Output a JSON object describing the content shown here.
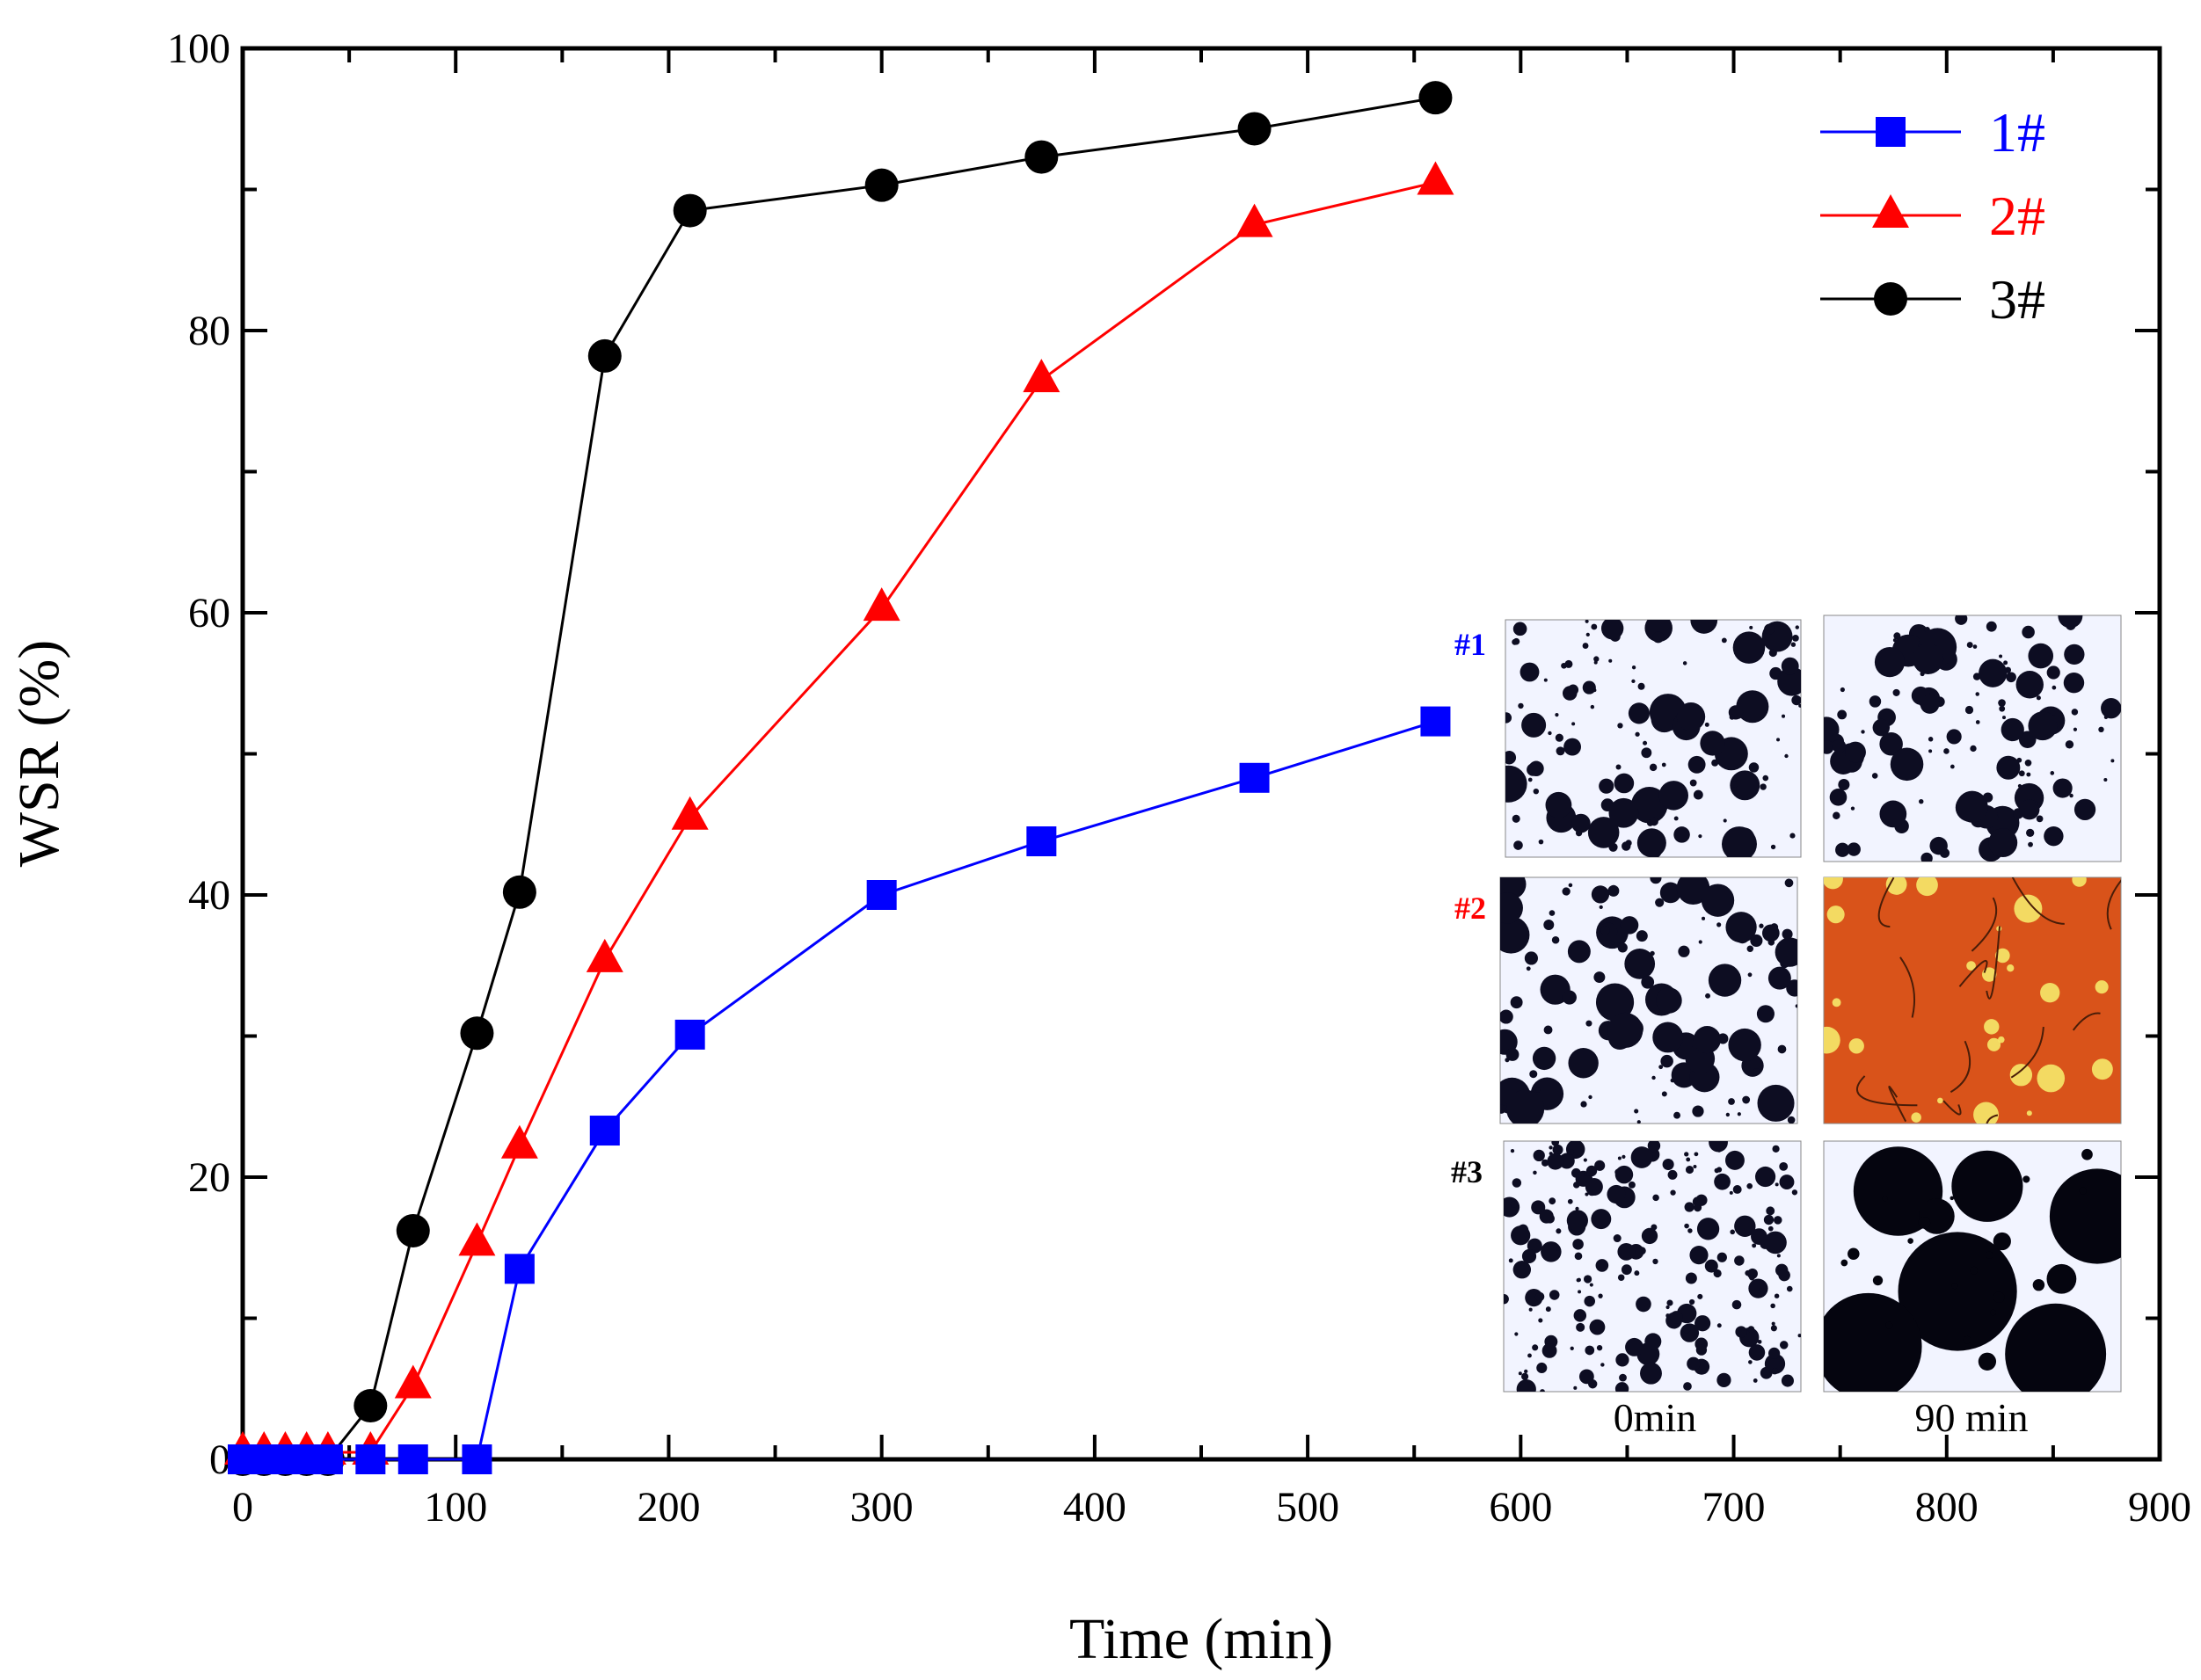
{
  "chart_data": {
    "type": "line",
    "xlabel": "Time (min)",
    "ylabel": "WSR (%)",
    "xlim": [
      0,
      900
    ],
    "ylim": [
      0,
      100
    ],
    "xticks": [
      "0",
      "100",
      "200",
      "300",
      "400",
      "500",
      "600",
      "700",
      "800",
      "900"
    ],
    "yticks": [
      "0",
      "20",
      "40",
      "60",
      "80",
      "100"
    ],
    "legend_position": "top-right",
    "series": [
      {
        "name": "1#",
        "color": "#0000ff",
        "marker": "square",
        "x": [
          0,
          10,
          20,
          30,
          40,
          60,
          80,
          110,
          130,
          170,
          210,
          300,
          375,
          475,
          560
        ],
        "y": [
          0,
          0,
          0,
          0,
          0,
          0,
          0,
          0,
          13.5,
          23.3,
          30.1,
          40,
          43.8,
          48.3,
          52.3
        ]
      },
      {
        "name": "2#",
        "color": "#ff0000",
        "marker": "triangle",
        "x": [
          0,
          10,
          20,
          30,
          40,
          60,
          80,
          110,
          130,
          170,
          210,
          300,
          375,
          475,
          560
        ],
        "y": [
          0.5,
          0.5,
          0.5,
          0.5,
          0.5,
          0.5,
          5.2,
          15.3,
          22.2,
          35.4,
          45.5,
          60.3,
          76.5,
          87.5,
          90.5
        ]
      },
      {
        "name": "3#",
        "color": "#000000",
        "marker": "circle",
        "x": [
          0,
          10,
          20,
          30,
          40,
          60,
          80,
          110,
          130,
          170,
          210,
          300,
          375,
          475,
          560
        ],
        "y": [
          0,
          0,
          0,
          0,
          0,
          3.8,
          16.2,
          30.2,
          40.2,
          78.2,
          88.5,
          90.3,
          92.3,
          94.3,
          96.5
        ]
      }
    ],
    "inset": {
      "row_labels": [
        {
          "text": "#1",
          "color": "#0000ff"
        },
        {
          "text": "#2",
          "color": "#ff0000"
        },
        {
          "text": "#3",
          "color": "#000000"
        }
      ],
      "column_labels": [
        "0min",
        "90 min"
      ],
      "panels": [
        {
          "name": "sample-1-0min",
          "background": "#f2f4ff",
          "droplet_color": "#0d0d22"
        },
        {
          "name": "sample-1-90min",
          "background": "#f2f4ff",
          "droplet_color": "#0d0d22"
        },
        {
          "name": "sample-2-0min",
          "background": "#f2f4ff",
          "droplet_color": "#0d0d22"
        },
        {
          "name": "sample-2-90min",
          "background": "#d9531a",
          "droplet_color": "#f5e96a"
        },
        {
          "name": "sample-3-0min",
          "background": "#f2f4ff",
          "droplet_color": "#0d0d22"
        },
        {
          "name": "sample-3-90min",
          "background": "#f2f4ff",
          "droplet_color": "#05050f"
        }
      ]
    }
  }
}
